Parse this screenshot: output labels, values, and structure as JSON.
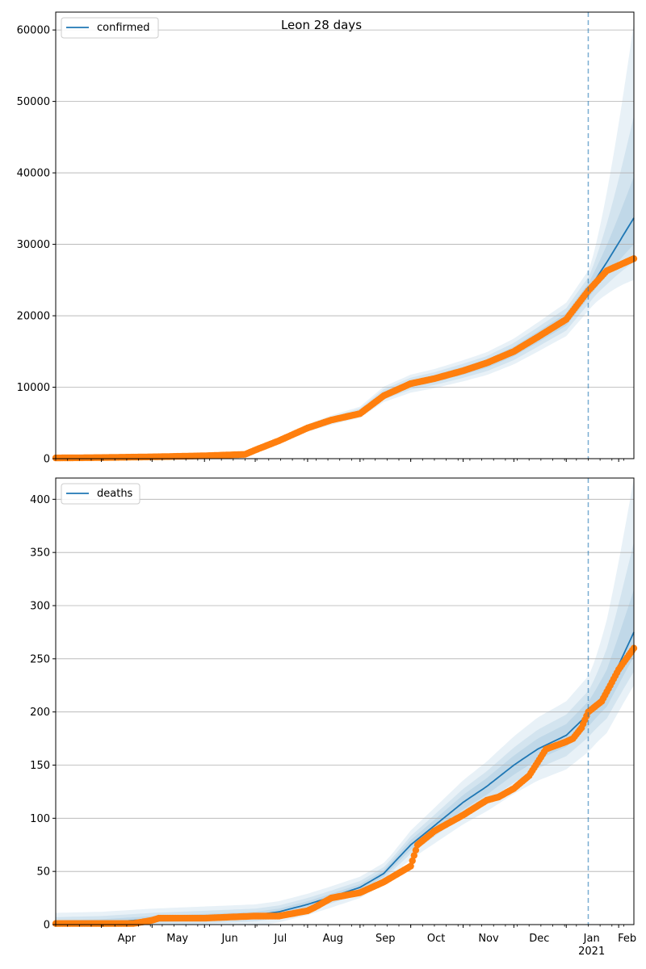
{
  "figure_title": "Leon 28 days",
  "colors": {
    "model": "#1f77b4",
    "observed": "#ff7f0e",
    "band": "#1f77b4",
    "grid": "#b0b0b0",
    "forecast_line": "#1f77b4"
  },
  "x_months": [
    "Apr",
    "May",
    "Jun",
    "Jul",
    "Aug",
    "Sep",
    "Oct",
    "Nov",
    "Dec",
    "Jan",
    "Feb"
  ],
  "x_year_label": "2021",
  "chart_data": [
    {
      "type": "line",
      "legend": "confirmed",
      "legend_placement": "top-left",
      "grid": "y",
      "x_range": [
        "2020-03-05",
        "2021-02-10"
      ],
      "forecast_start": "2021-01-14",
      "ylim": [
        0,
        62500
      ],
      "y_ticks": [
        0,
        10000,
        20000,
        30000,
        40000,
        50000,
        60000
      ],
      "model": {
        "x": [
          "2020-03-05",
          "2020-04-01",
          "2020-05-01",
          "2020-06-01",
          "2020-06-25",
          "2020-07-01",
          "2020-07-15",
          "2020-08-01",
          "2020-08-15",
          "2020-09-01",
          "2020-09-15",
          "2020-10-01",
          "2020-10-15",
          "2020-11-01",
          "2020-11-15",
          "2020-12-01",
          "2020-12-15",
          "2021-01-01",
          "2021-01-14",
          "2021-01-25",
          "2021-02-10"
        ],
        "values": [
          100,
          150,
          250,
          400,
          600,
          1200,
          2500,
          4300,
          5400,
          6500,
          9000,
          10500,
          11200,
          12300,
          13300,
          15000,
          17000,
          19500,
          23500,
          27500,
          33700
        ]
      },
      "bands": [
        {
          "level": "outer",
          "upper_end": 61000,
          "lower_end": 25000,
          "hist_spread": 0.12
        },
        {
          "level": "mid",
          "upper_end": 48000,
          "lower_end": 27500,
          "hist_spread": 0.08
        },
        {
          "level": "inner",
          "upper_end": 39500,
          "lower_end": 30000,
          "hist_spread": 0.045
        }
      ],
      "observed": {
        "x": [
          "2020-03-05",
          "2020-04-01",
          "2020-05-01",
          "2020-06-01",
          "2020-06-25",
          "2020-07-01",
          "2020-07-15",
          "2020-08-01",
          "2020-08-15",
          "2020-09-01",
          "2020-09-15",
          "2020-10-01",
          "2020-10-15",
          "2020-11-01",
          "2020-11-15",
          "2020-12-01",
          "2020-12-15",
          "2021-01-01",
          "2021-01-14",
          "2021-01-25",
          "2021-02-10"
        ],
        "values": [
          100,
          150,
          250,
          400,
          600,
          1200,
          2500,
          4300,
          5400,
          6300,
          8800,
          10500,
          11200,
          12300,
          13400,
          15000,
          17000,
          19500,
          23500,
          26300,
          28000
        ]
      }
    },
    {
      "type": "line",
      "legend": "deaths",
      "legend_placement": "top-left",
      "grid": "y",
      "x_range": [
        "2020-03-05",
        "2021-02-10"
      ],
      "forecast_start": "2021-01-14",
      "ylim": [
        0,
        420
      ],
      "y_ticks": [
        0,
        50,
        100,
        150,
        200,
        250,
        300,
        350,
        400
      ],
      "model": {
        "x": [
          "2020-03-05",
          "2020-04-01",
          "2020-05-01",
          "2020-06-01",
          "2020-07-01",
          "2020-07-15",
          "2020-08-01",
          "2020-08-15",
          "2020-09-01",
          "2020-09-15",
          "2020-10-01",
          "2020-10-15",
          "2020-11-01",
          "2020-11-15",
          "2020-12-01",
          "2020-12-15",
          "2021-01-01",
          "2021-01-14",
          "2021-01-25",
          "2021-02-10"
        ],
        "values": [
          1,
          2,
          5,
          7,
          9,
          12,
          19,
          26,
          35,
          48,
          75,
          93,
          115,
          130,
          150,
          165,
          178,
          198,
          220,
          275
        ]
      },
      "bands": [
        {
          "level": "outer",
          "upper_end": 420,
          "lower_end": 225,
          "hist_spread": 0.18,
          "hist_floor": 10
        },
        {
          "level": "mid",
          "upper_end": 360,
          "lower_end": 238,
          "hist_spread": 0.11,
          "hist_floor": 6
        },
        {
          "level": "inner",
          "upper_end": 315,
          "lower_end": 252,
          "hist_spread": 0.06,
          "hist_floor": 3
        }
      ],
      "observed": {
        "x": [
          "2020-03-05",
          "2020-03-20",
          "2020-04-01",
          "2020-04-20",
          "2020-05-01",
          "2020-05-05",
          "2020-06-01",
          "2020-06-15",
          "2020-07-01",
          "2020-07-15",
          "2020-08-01",
          "2020-08-05",
          "2020-08-15",
          "2020-09-01",
          "2020-09-15",
          "2020-10-01",
          "2020-10-05",
          "2020-10-15",
          "2020-11-01",
          "2020-11-15",
          "2020-11-22",
          "2020-12-01",
          "2020-12-10",
          "2020-12-20",
          "2021-01-01",
          "2021-01-05",
          "2021-01-10",
          "2021-01-14",
          "2021-01-22",
          "2021-02-01",
          "2021-02-10"
        ],
        "values": [
          1,
          1,
          1,
          1,
          4,
          6,
          6,
          7,
          8,
          8,
          13,
          16,
          25,
          30,
          40,
          55,
          75,
          88,
          103,
          117,
          120,
          128,
          140,
          165,
          172,
          175,
          185,
          200,
          210,
          240,
          260
        ]
      }
    }
  ]
}
